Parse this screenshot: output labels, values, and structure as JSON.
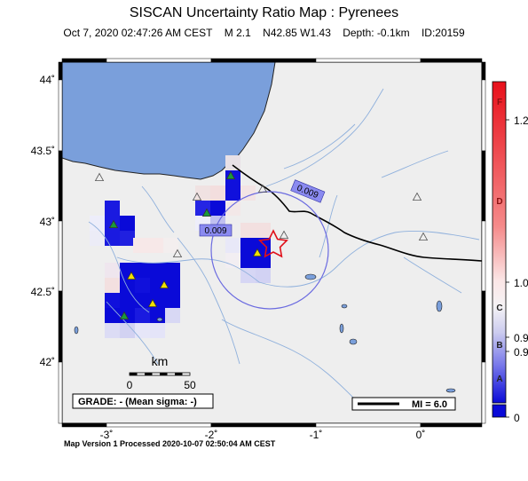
{
  "title": "SISCAN Uncertainty Ratio Map : Pyrenees",
  "subtitle": {
    "datetime": "Oct  7, 2020 02:47:26 AM CEST",
    "magnitude": "M 2.1",
    "location": "N42.85 W1.43",
    "depth": "Depth: -0.1km",
    "event_id": "ID:20159"
  },
  "axes": {
    "lat_ticks": [
      "44˚",
      "43.5˚",
      "43˚",
      "42.5˚",
      "42˚"
    ],
    "lon_ticks": [
      "-3˚",
      "-2˚",
      "-1˚",
      "0˚"
    ],
    "lon_range": [
      -3.5,
      0.5
    ],
    "lat_range": [
      41.7,
      44.25
    ]
  },
  "scale_bar": {
    "unit": "km",
    "start": "0",
    "end": "50"
  },
  "grade_box": "GRADE: - (Mean sigma: -)",
  "mi_box": "MI = 6.0",
  "contour_labels": [
    "0.009",
    "0.009"
  ],
  "colorbar": {
    "grades": [
      "F",
      "D",
      "C",
      "B",
      "A"
    ],
    "values": [
      "1.2",
      "1.0",
      "0.9",
      "0.9",
      "0"
    ]
  },
  "epicenter": {
    "lat": 42.85,
    "lon": -1.43,
    "symbol": "star",
    "color": "#e0101a"
  },
  "colors": {
    "sea": "#7a9fdb",
    "land": "#eeeeee",
    "high_uncertainty": "#e0101a",
    "low_uncertainty": "#0a0ad8"
  },
  "footer": "Map Version 1 Processed 2020-10-07 02:50:04 AM CEST"
}
